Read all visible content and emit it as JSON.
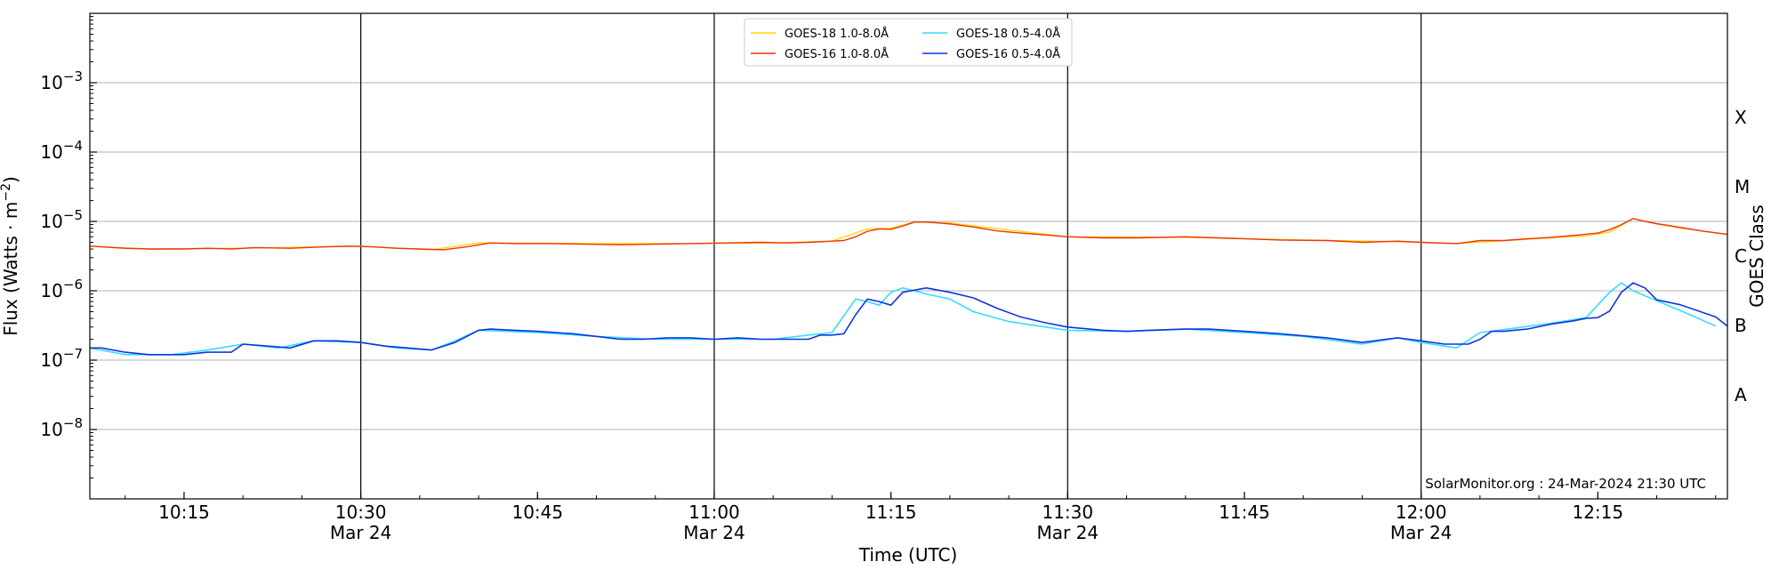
{
  "chart_data": {
    "type": "line",
    "xlabel": "Time (UTC)",
    "ylabel": "Flux (Watts · m⁻²)",
    "y2label": "GOES Class",
    "yscale": "log",
    "ylim": [
      1e-09,
      0.01
    ],
    "xlim": [
      "2024-03-24 10:07",
      "2024-03-24 12:26"
    ],
    "grid": "horizontal",
    "legend_position": "top-center",
    "credit": "SolarMonitor.org : 24-Mar-2024 21:30 UTC",
    "y_ticks": [
      {
        "value": 1e-08,
        "base": "10",
        "exp": "−8"
      },
      {
        "value": 1e-07,
        "base": "10",
        "exp": "−7"
      },
      {
        "value": 1e-06,
        "base": "10",
        "exp": "−6"
      },
      {
        "value": 1e-05,
        "base": "10",
        "exp": "−5"
      },
      {
        "value": 0.0001,
        "base": "10",
        "exp": "−4"
      },
      {
        "value": 0.001,
        "base": "10",
        "exp": "−3"
      }
    ],
    "class_labels": [
      {
        "label": "A",
        "value": 3.16e-08
      },
      {
        "label": "B",
        "value": 3.16e-07
      },
      {
        "label": "C",
        "value": 3.16e-06
      },
      {
        "label": "M",
        "value": 3.16e-05
      },
      {
        "label": "X",
        "value": 0.000316
      }
    ],
    "x_ticks": [
      {
        "time": "10:15",
        "date": ""
      },
      {
        "time": "10:30",
        "date": "Mar 24"
      },
      {
        "time": "10:45",
        "date": ""
      },
      {
        "time": "11:00",
        "date": "Mar 24"
      },
      {
        "time": "11:15",
        "date": ""
      },
      {
        "time": "11:30",
        "date": "Mar 24"
      },
      {
        "time": "11:45",
        "date": ""
      },
      {
        "time": "12:00",
        "date": "Mar 24"
      },
      {
        "time": "12:15",
        "date": ""
      }
    ],
    "vlines": [
      "10:30",
      "11:00",
      "11:30",
      "12:00"
    ],
    "series": [
      {
        "name": "GOES-18 1.0-8.0Å",
        "color": "#ffd700",
        "x": [
          "10:07",
          "10:12",
          "10:20",
          "10:30",
          "10:36",
          "10:40",
          "10:50",
          "10:58",
          "11:05",
          "11:10",
          "11:13",
          "11:15",
          "11:17",
          "11:20",
          "11:25",
          "11:30",
          "11:40",
          "11:50",
          "11:58",
          "12:03",
          "12:08",
          "12:14",
          "12:16",
          "12:18",
          "12:20",
          "12:22",
          "12:26"
        ],
        "y": [
          4.4e-06,
          4e-06,
          4.1e-06,
          4.4e-06,
          3.9e-06,
          4.9e-06,
          4.8e-06,
          4.8e-06,
          4.9e-06,
          5.2e-06,
          7.8e-06,
          8e-06,
          9.8e-06,
          9.5e-06,
          7.5e-06,
          6e-06,
          5.9e-06,
          5.4e-06,
          5.1e-06,
          4.8e-06,
          5.4e-06,
          6.2e-06,
          7e-06,
          1.1e-05,
          9.2e-06,
          8e-06,
          6.5e-06
        ]
      },
      {
        "name": "GOES-18 0.5-4.0Å",
        "color": "#33ddff",
        "x": [
          "10:07",
          "10:10",
          "10:14",
          "10:17",
          "10:20",
          "10:23",
          "10:26",
          "10:30",
          "10:33",
          "10:36",
          "10:38",
          "10:40",
          "10:45",
          "10:50",
          "10:55",
          "11:00",
          "11:05",
          "11:08",
          "11:10",
          "11:12",
          "11:13",
          "11:14",
          "11:15",
          "11:16",
          "11:18",
          "11:20",
          "11:22",
          "11:25",
          "11:30",
          "11:35",
          "11:40",
          "11:45",
          "11:50",
          "11:55",
          "11:58",
          "12:00",
          "12:03",
          "12:05",
          "12:08",
          "12:11",
          "12:14",
          "12:16",
          "12:17",
          "12:18",
          "12:20",
          "12:22",
          "12:25"
        ],
        "y": [
          1.5e-07,
          1.2e-07,
          1.2e-07,
          1.4e-07,
          1.7e-07,
          1.5e-07,
          1.9e-07,
          1.8e-07,
          1.5e-07,
          1.4e-07,
          1.9e-07,
          2.7e-07,
          2.5e-07,
          2.2e-07,
          2e-07,
          2e-07,
          2e-07,
          2.3e-07,
          2.5e-07,
          7.6e-07,
          7e-07,
          6.2e-07,
          9.5e-07,
          1.1e-06,
          9e-07,
          7.6e-07,
          5e-07,
          3.6e-07,
          2.7e-07,
          2.6e-07,
          2.8e-07,
          2.5e-07,
          2.2e-07,
          1.7e-07,
          2.1e-07,
          1.8e-07,
          1.5e-07,
          2.5e-07,
          2.9e-07,
          3.4e-07,
          4.1e-07,
          9.5e-07,
          1.3e-06,
          1e-06,
          7.2e-07,
          5.2e-07,
          3.1e-07
        ]
      },
      {
        "name": "GOES-16 1.0-8.0Å",
        "color": "#ee3311",
        "x": [
          "10:07",
          "10:08",
          "10:10",
          "10:12",
          "10:15",
          "10:17",
          "10:19",
          "10:21",
          "10:24",
          "10:27",
          "10:29",
          "10:31",
          "10:33",
          "10:35",
          "10:37",
          "10:39",
          "10:41",
          "10:43",
          "10:46",
          "10:49",
          "10:52",
          "10:55",
          "10:58",
          "11:01",
          "11:04",
          "11:06",
          "11:08",
          "11:10",
          "11:11",
          "11:12",
          "11:13",
          "11:14",
          "11:15",
          "11:16",
          "11:17",
          "11:18",
          "11:20",
          "11:22",
          "11:24",
          "11:26",
          "11:28",
          "11:30",
          "11:33",
          "11:36",
          "11:40",
          "11:44",
          "11:48",
          "11:52",
          "11:55",
          "11:58",
          "12:00",
          "12:03",
          "12:05",
          "12:07",
          "12:09",
          "12:11",
          "12:13",
          "12:15",
          "12:16",
          "12:17",
          "12:18",
          "12:19",
          "12:20",
          "12:22",
          "12:24",
          "12:26"
        ],
        "y": [
          4.4e-06,
          4.3e-06,
          4.1e-06,
          4e-06,
          4e-06,
          4.1e-06,
          4e-06,
          4.2e-06,
          4.1e-06,
          4.3e-06,
          4.4e-06,
          4.3e-06,
          4.1e-06,
          4e-06,
          3.9e-06,
          4.3e-06,
          4.9e-06,
          4.8e-06,
          4.8e-06,
          4.7e-06,
          4.6e-06,
          4.7e-06,
          4.8e-06,
          4.9e-06,
          5e-06,
          4.9e-06,
          5e-06,
          5.2e-06,
          5.3e-06,
          6e-06,
          7.2e-06,
          7.8e-06,
          7.7e-06,
          8.6e-06,
          9.8e-06,
          9.8e-06,
          9.2e-06,
          8.3e-06,
          7.3e-06,
          6.8e-06,
          6.4e-06,
          6e-06,
          5.8e-06,
          5.8e-06,
          6e-06,
          5.7e-06,
          5.4e-06,
          5.3e-06,
          5e-06,
          5.2e-06,
          5e-06,
          4.8e-06,
          5.3e-06,
          5.3e-06,
          5.6e-06,
          5.9e-06,
          6.3e-06,
          6.8e-06,
          7.6e-06,
          9e-06,
          1.1e-05,
          1e-05,
          9.3e-06,
          8.2e-06,
          7.2e-06,
          6.5e-06
        ]
      },
      {
        "name": "GOES-16 0.5-4.0Å",
        "color": "#1133dd",
        "x": [
          "10:07",
          "10:08",
          "10:10",
          "10:12",
          "10:14",
          "10:15",
          "10:17",
          "10:19",
          "10:20",
          "10:22",
          "10:24",
          "10:26",
          "10:28",
          "10:30",
          "10:32",
          "10:34",
          "10:36",
          "10:38",
          "10:40",
          "10:41",
          "10:43",
          "10:45",
          "10:48",
          "10:50",
          "10:52",
          "10:54",
          "10:56",
          "10:58",
          "11:00",
          "11:02",
          "11:04",
          "11:06",
          "11:08",
          "11:09",
          "11:10",
          "11:11",
          "11:12",
          "11:13",
          "11:14",
          "11:15",
          "11:16",
          "11:18",
          "11:20",
          "11:22",
          "11:24",
          "11:26",
          "11:28",
          "11:30",
          "11:33",
          "11:35",
          "11:37",
          "11:40",
          "11:42",
          "11:45",
          "11:48",
          "11:52",
          "11:55",
          "11:58",
          "12:00",
          "12:02",
          "12:03",
          "12:04",
          "12:05",
          "12:06",
          "12:07",
          "12:09",
          "12:11",
          "12:13",
          "12:14",
          "12:15",
          "12:16",
          "12:17",
          "12:18",
          "12:19",
          "12:20",
          "12:22",
          "12:25",
          "12:26"
        ],
        "y": [
          1.5e-07,
          1.5e-07,
          1.3e-07,
          1.2e-07,
          1.2e-07,
          1.2e-07,
          1.3e-07,
          1.3e-07,
          1.7e-07,
          1.6e-07,
          1.5e-07,
          1.9e-07,
          1.9e-07,
          1.8e-07,
          1.6e-07,
          1.5e-07,
          1.4e-07,
          1.8e-07,
          2.7e-07,
          2.8e-07,
          2.7e-07,
          2.6e-07,
          2.4e-07,
          2.2e-07,
          2e-07,
          2e-07,
          2.1e-07,
          2.1e-07,
          2e-07,
          2.1e-07,
          2e-07,
          2e-07,
          2e-07,
          2.3e-07,
          2.3e-07,
          2.4e-07,
          4.5e-07,
          7.6e-07,
          7e-07,
          6.2e-07,
          9.5e-07,
          1.1e-06,
          9.5e-07,
          7.9e-07,
          5.6e-07,
          4.2e-07,
          3.5e-07,
          3e-07,
          2.7e-07,
          2.6e-07,
          2.7e-07,
          2.8e-07,
          2.8e-07,
          2.6e-07,
          2.4e-07,
          2.1e-07,
          1.8e-07,
          2.1e-07,
          1.9e-07,
          1.7e-07,
          1.7e-07,
          1.7e-07,
          2e-07,
          2.6e-07,
          2.6e-07,
          2.8e-07,
          3.3e-07,
          3.7e-07,
          4e-07,
          4.1e-07,
          5.1e-07,
          9.5e-07,
          1.3e-06,
          1.1e-06,
          7.4e-07,
          6.3e-07,
          4.2e-07,
          3.1e-07
        ]
      }
    ]
  }
}
